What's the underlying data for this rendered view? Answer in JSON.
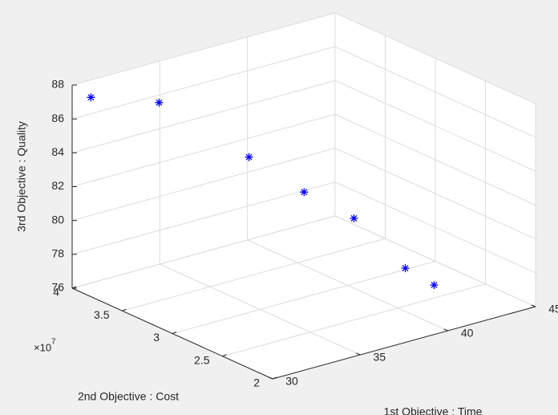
{
  "chart_data": {
    "type": "scatter3d",
    "xlabel": "1st Objective : Time",
    "ylabel": "2nd Objective : Cost",
    "zlabel": "3rd Objective : Quality",
    "y_offset_label": {
      "base": "×10",
      "exponent": "7"
    },
    "marker": "*",
    "color": "#0000ff",
    "grid": true,
    "x": [
      30.5,
      34.1,
      37,
      38.6,
      40.7,
      41,
      41.5
    ],
    "y": [
      39000000,
      38500000,
      34600000,
      31900000,
      30600000,
      26000000,
      24000000
    ],
    "z": [
      87.4,
      86.2,
      83.2,
      81.4,
      79.6,
      77.8,
      77.2
    ],
    "xlim": [
      30,
      45
    ],
    "xticks": [
      30,
      35,
      40,
      45
    ],
    "ylim": [
      20000000,
      40000000
    ],
    "yticks": [
      {
        "value": 20000000,
        "label": "2"
      },
      {
        "value": 25000000,
        "label": "2.5"
      },
      {
        "value": 30000000,
        "label": "3"
      },
      {
        "value": 35000000,
        "label": "3.5"
      },
      {
        "value": 40000000,
        "label": "4"
      }
    ],
    "zlim": [
      76,
      88
    ],
    "zticks": [
      76,
      78,
      80,
      82,
      84,
      86,
      88
    ]
  }
}
